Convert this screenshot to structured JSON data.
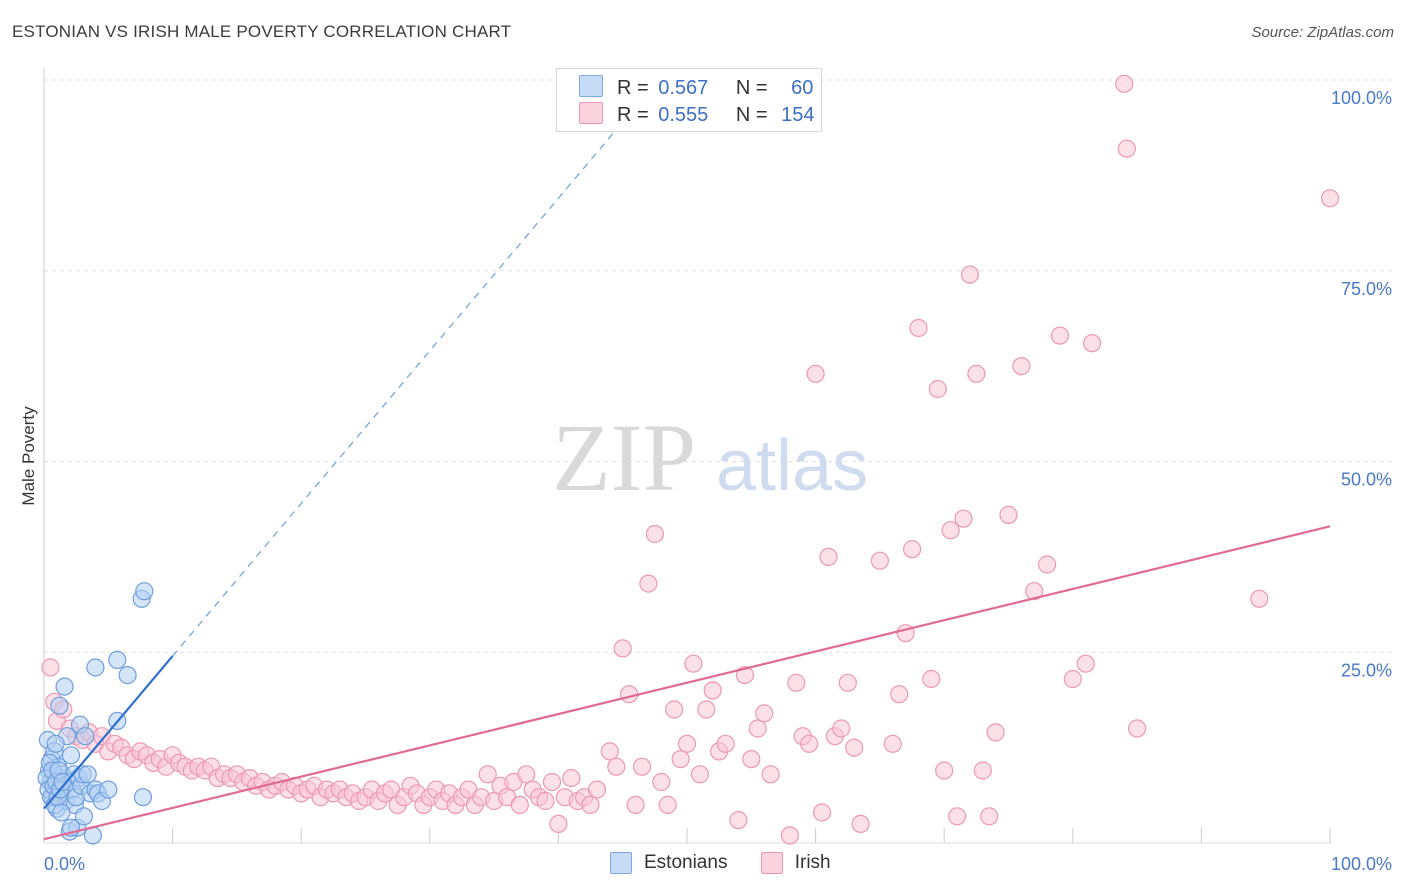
{
  "title": "ESTONIAN VS IRISH MALE POVERTY CORRELATION CHART",
  "source": "Source: ZipAtlas.com",
  "watermark": {
    "zip": "ZIP",
    "atlas": "atlas"
  },
  "legend_top": [
    {
      "r_label": "R =",
      "r_value": "0.567",
      "n_label": "N =",
      "n_value": "60",
      "color": "#a7c8f0"
    },
    {
      "r_label": "R =",
      "r_value": "0.555",
      "n_label": "N =",
      "n_value": "154",
      "color": "#f6b8cc"
    }
  ],
  "legend_bottom": [
    {
      "label": "Estonians",
      "color": "#a7c8f0"
    },
    {
      "label": "Irish",
      "color": "#f6b8cc"
    }
  ],
  "chart_data": {
    "type": "scatter",
    "ylabel": "Male Poverty",
    "xlim": [
      0,
      100
    ],
    "ylim": [
      0,
      100
    ],
    "x_tick_labels": [
      "0.0%",
      "100.0%"
    ],
    "y_tick_labels": [
      "25.0%",
      "50.0%",
      "75.0%",
      "100.0%"
    ],
    "y_ticks": [
      25,
      50,
      75,
      100
    ],
    "grid": true,
    "legend_position": "top-center",
    "series": [
      {
        "name": "Estonians",
        "color": "#6aa0e0",
        "fill": "#a7c8f0",
        "trend": {
          "x0": 0,
          "y0": 4.5,
          "x1": 10,
          "y1": 24.5,
          "dashed_to_x": 45
        },
        "points": [
          [
            0.3,
            13.5
          ],
          [
            0.4,
            9.5
          ],
          [
            0.5,
            8
          ],
          [
            0.6,
            11
          ],
          [
            0.7,
            6
          ],
          [
            0.8,
            12
          ],
          [
            0.9,
            7
          ],
          [
            1,
            4.5
          ],
          [
            1.1,
            10
          ],
          [
            1.2,
            8.5
          ],
          [
            1.3,
            6.5
          ],
          [
            1.4,
            9
          ],
          [
            1.5,
            7.5
          ],
          [
            1.6,
            20.5
          ],
          [
            1.7,
            5.5
          ],
          [
            1.8,
            14
          ],
          [
            1.9,
            8
          ],
          [
            2,
            1.5
          ],
          [
            2.1,
            11.5
          ],
          [
            2.2,
            7
          ],
          [
            2.3,
            9
          ],
          [
            2.4,
            5
          ],
          [
            2.5,
            6
          ],
          [
            2.6,
            2
          ],
          [
            2.7,
            8.5
          ],
          [
            2.8,
            15.5
          ],
          [
            2.9,
            7.5
          ],
          [
            3,
            9
          ],
          [
            3.1,
            3.5
          ],
          [
            3.2,
            14
          ],
          [
            3.4,
            9
          ],
          [
            3.6,
            6.5
          ],
          [
            3.8,
            1
          ],
          [
            4,
            7
          ],
          [
            4.2,
            6.5
          ],
          [
            4.5,
            5.5
          ],
          [
            5,
            7
          ],
          [
            0.2,
            8.5
          ],
          [
            0.35,
            7
          ],
          [
            0.55,
            6
          ],
          [
            0.45,
            10.5
          ],
          [
            0.65,
            9.5
          ],
          [
            0.75,
            7.5
          ],
          [
            0.85,
            5
          ],
          [
            0.95,
            8
          ],
          [
            1.05,
            6
          ],
          [
            1.15,
            9.5
          ],
          [
            1.25,
            7
          ],
          [
            1.35,
            4
          ],
          [
            1.45,
            8
          ],
          [
            4,
            23
          ],
          [
            5.7,
            24
          ],
          [
            6.5,
            22
          ],
          [
            5.7,
            16
          ],
          [
            7.6,
            32
          ],
          [
            7.8,
            33
          ],
          [
            7.7,
            6
          ],
          [
            1.2,
            18
          ],
          [
            2.1,
            2
          ],
          [
            0.9,
            13
          ]
        ]
      },
      {
        "name": "Irish",
        "color": "#e06a95",
        "fill": "#f6b8cc",
        "trend": {
          "x0": 0,
          "y0": 0.5,
          "x1": 100,
          "y1": 41.5
        },
        "points": [
          [
            0.5,
            23
          ],
          [
            0.8,
            18.5
          ],
          [
            1,
            16
          ],
          [
            1.5,
            17.5
          ],
          [
            2,
            15
          ],
          [
            2.5,
            14
          ],
          [
            3,
            13.5
          ],
          [
            3.5,
            14.5
          ],
          [
            4,
            13
          ],
          [
            4.5,
            14
          ],
          [
            5,
            12
          ],
          [
            5.5,
            13
          ],
          [
            6,
            12.5
          ],
          [
            6.5,
            11.5
          ],
          [
            7,
            11
          ],
          [
            7.5,
            12
          ],
          [
            8,
            11.5
          ],
          [
            8.5,
            10.5
          ],
          [
            9,
            11
          ],
          [
            9.5,
            10
          ],
          [
            10,
            11.5
          ],
          [
            10.5,
            10.5
          ],
          [
            11,
            10
          ],
          [
            11.5,
            9.5
          ],
          [
            12,
            10
          ],
          [
            12.5,
            9.5
          ],
          [
            13,
            10
          ],
          [
            13.5,
            8.5
          ],
          [
            14,
            9
          ],
          [
            14.5,
            8.5
          ],
          [
            15,
            9
          ],
          [
            15.5,
            8
          ],
          [
            16,
            8.5
          ],
          [
            16.5,
            7.5
          ],
          [
            17,
            8
          ],
          [
            17.5,
            7
          ],
          [
            18,
            7.5
          ],
          [
            18.5,
            8
          ],
          [
            19,
            7
          ],
          [
            19.5,
            7.5
          ],
          [
            20,
            6.5
          ],
          [
            20.5,
            7
          ],
          [
            21,
            7.5
          ],
          [
            21.5,
            6
          ],
          [
            22,
            7
          ],
          [
            22.5,
            6.5
          ],
          [
            23,
            7
          ],
          [
            23.5,
            6
          ],
          [
            24,
            6.5
          ],
          [
            24.5,
            5.5
          ],
          [
            25,
            6
          ],
          [
            25.5,
            7
          ],
          [
            26,
            5.5
          ],
          [
            26.5,
            6.5
          ],
          [
            27,
            7
          ],
          [
            27.5,
            5
          ],
          [
            28,
            6
          ],
          [
            28.5,
            7.5
          ],
          [
            29,
            6.5
          ],
          [
            29.5,
            5
          ],
          [
            30,
            6
          ],
          [
            30.5,
            7
          ],
          [
            31,
            5.5
          ],
          [
            31.5,
            6.5
          ],
          [
            32,
            5
          ],
          [
            32.5,
            6
          ],
          [
            33,
            7
          ],
          [
            33.5,
            5
          ],
          [
            34,
            6
          ],
          [
            34.5,
            9
          ],
          [
            35,
            5.5
          ],
          [
            35.5,
            7.5
          ],
          [
            36,
            6
          ],
          [
            36.5,
            8
          ],
          [
            37,
            5
          ],
          [
            37.5,
            9
          ],
          [
            38,
            7
          ],
          [
            38.5,
            6
          ],
          [
            39,
            5.5
          ],
          [
            39.5,
            8
          ],
          [
            40,
            2.5
          ],
          [
            40.5,
            6
          ],
          [
            41,
            8.5
          ],
          [
            41.5,
            5.5
          ],
          [
            42,
            6
          ],
          [
            42.5,
            5
          ],
          [
            43,
            7
          ],
          [
            44,
            12
          ],
          [
            44.5,
            10
          ],
          [
            45,
            25.5
          ],
          [
            45.5,
            19.5
          ],
          [
            46,
            5
          ],
          [
            46.5,
            10
          ],
          [
            47,
            34
          ],
          [
            47.5,
            40.5
          ],
          [
            48,
            8
          ],
          [
            48.5,
            5
          ],
          [
            49,
            17.5
          ],
          [
            49.5,
            11
          ],
          [
            50,
            13
          ],
          [
            50.5,
            23.5
          ],
          [
            51,
            9
          ],
          [
            51.5,
            17.5
          ],
          [
            52,
            20
          ],
          [
            52.5,
            12
          ],
          [
            53,
            13
          ],
          [
            54,
            3
          ],
          [
            54.5,
            22
          ],
          [
            55,
            11
          ],
          [
            55.5,
            15
          ],
          [
            56,
            17
          ],
          [
            56.5,
            9
          ],
          [
            58,
            1
          ],
          [
            58.5,
            21
          ],
          [
            59,
            14
          ],
          [
            59.5,
            13
          ],
          [
            60,
            61.5
          ],
          [
            60.5,
            4
          ],
          [
            61,
            37.5
          ],
          [
            61.5,
            14
          ],
          [
            62,
            15
          ],
          [
            62.5,
            21
          ],
          [
            63,
            12.5
          ],
          [
            63.5,
            2.5
          ],
          [
            65,
            37
          ],
          [
            66,
            13
          ],
          [
            66.5,
            19.5
          ],
          [
            67,
            27.5
          ],
          [
            67.5,
            38.5
          ],
          [
            68,
            67.5
          ],
          [
            69,
            21.5
          ],
          [
            69.5,
            59.5
          ],
          [
            70,
            9.5
          ],
          [
            70.5,
            41
          ],
          [
            71,
            3.5
          ],
          [
            71.5,
            42.5
          ],
          [
            72,
            74.5
          ],
          [
            72.5,
            61.5
          ],
          [
            73,
            9.5
          ],
          [
            73.5,
            3.5
          ],
          [
            74,
            14.5
          ],
          [
            75,
            43
          ],
          [
            76,
            62.5
          ],
          [
            77,
            33
          ],
          [
            78,
            36.5
          ],
          [
            79,
            66.5
          ],
          [
            80,
            21.5
          ],
          [
            81,
            23.5
          ],
          [
            81.5,
            65.5
          ],
          [
            84,
            99.5
          ],
          [
            84.2,
            91
          ],
          [
            85,
            15
          ],
          [
            94.5,
            32
          ],
          [
            100,
            84.5
          ]
        ]
      }
    ]
  }
}
